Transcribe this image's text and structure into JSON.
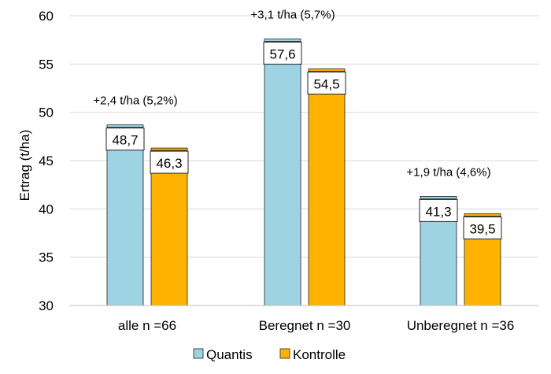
{
  "chart_data": {
    "type": "bar",
    "title": "",
    "xlabel": "",
    "ylabel": "Ertrag (t/ha)",
    "ylim": [
      30,
      60
    ],
    "yticks": [
      30,
      35,
      40,
      45,
      50,
      55,
      60
    ],
    "ytick_labels": [
      "30",
      "35",
      "40",
      "45",
      "50",
      "55",
      "60"
    ],
    "grid": true,
    "legend_position": "bottom",
    "categories": [
      "alle n =66",
      "Beregnet  n =30",
      "Unberegnet  n =36"
    ],
    "series": [
      {
        "name": "Quantis",
        "color": "#9DD3E3",
        "values": [
          48.7,
          57.6,
          41.3
        ],
        "labels": [
          "48,7",
          "57,6",
          "41,3"
        ]
      },
      {
        "name": "Kontrolle",
        "color": "#FFB300",
        "values": [
          46.3,
          54.5,
          39.5
        ],
        "labels": [
          "46,3",
          "54,5",
          "39,5"
        ]
      }
    ],
    "annotations": [
      "+2,4 t/ha (5,2%)",
      "+3,1 t/ha (5,7%)",
      "+1,9 t/ha (4,6%)"
    ]
  }
}
